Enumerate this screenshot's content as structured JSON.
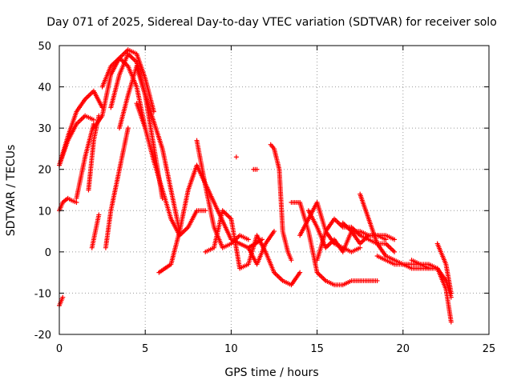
{
  "chart_data": {
    "type": "scatter",
    "title": "Day 071 of 2025, Sidereal Day-to-day VTEC variation (SDTVAR) for receiver solo",
    "xlabel": "GPS time / hours",
    "ylabel": "SDTVAR / TECUs",
    "xlim": [
      0,
      25
    ],
    "ylim": [
      -20,
      50
    ],
    "x_ticks": [
      0,
      5,
      10,
      15,
      20,
      25
    ],
    "y_ticks": [
      -20,
      -10,
      0,
      10,
      20,
      30,
      40,
      50
    ],
    "grid": true,
    "marker": "+",
    "series_color": "#ff0000",
    "series": [
      {
        "name": "arc-1",
        "x": [
          0.0,
          0.5,
          1.0,
          1.5,
          2.0
        ],
        "y": [
          21,
          27,
          31,
          33,
          32
        ]
      },
      {
        "name": "arc-2",
        "x": [
          0.0,
          0.5,
          1.0,
          1.5,
          2.0,
          2.5
        ],
        "y": [
          21,
          28,
          34,
          37,
          39,
          35
        ]
      },
      {
        "name": "arc-3",
        "x": [
          0.0,
          0.2,
          0.5,
          0.7,
          1.0
        ],
        "y": [
          10,
          12,
          13,
          12.5,
          12
        ]
      },
      {
        "name": "arc-4",
        "x": [
          0.0,
          0.2
        ],
        "y": [
          -13,
          -11
        ]
      },
      {
        "name": "arc-5",
        "x": [
          1.0,
          1.5,
          2.0
        ],
        "y": [
          13,
          23,
          31
        ]
      },
      {
        "name": "arc-6",
        "x": [
          1.7,
          2.0,
          2.3
        ],
        "y": [
          15,
          27,
          33
        ]
      },
      {
        "name": "arc-7",
        "x": [
          1.9,
          2.1,
          2.3
        ],
        "y": [
          1,
          5,
          9
        ]
      },
      {
        "name": "arc-8",
        "x": [
          2.0,
          2.5,
          3.0,
          3.5,
          4.0,
          4.5,
          5.0
        ],
        "y": [
          30,
          33,
          43,
          47,
          45,
          40,
          30
        ]
      },
      {
        "name": "arc-9",
        "x": [
          2.5,
          3.0,
          3.5,
          4.0,
          4.5,
          5.0,
          5.5
        ],
        "y": [
          40,
          45,
          47,
          49,
          48,
          42,
          34
        ]
      },
      {
        "name": "arc-10",
        "x": [
          2.7,
          3.0,
          3.5,
          4.0
        ],
        "y": [
          1,
          10,
          20,
          30
        ]
      },
      {
        "name": "arc-11",
        "x": [
          3.0,
          3.5,
          4.0,
          4.5,
          5.0,
          6.0,
          7.0
        ],
        "y": [
          35,
          43,
          48,
          46,
          38,
          25,
          5
        ]
      },
      {
        "name": "arc-12",
        "x": [
          3.5,
          4.0,
          4.5,
          5.0,
          6.0
        ],
        "y": [
          30,
          38,
          45,
          38,
          13
        ]
      },
      {
        "name": "arc-13",
        "x": [
          4.5,
          5.0,
          5.5,
          6.0,
          6.5,
          7.0,
          7.5,
          8.0,
          8.5
        ],
        "y": [
          36,
          30,
          22,
          15,
          8,
          4,
          6,
          10,
          10
        ]
      },
      {
        "name": "arc-14",
        "x": [
          5.8,
          6.5,
          7.0,
          7.5,
          8.0,
          9.0,
          10.0,
          11.0,
          11.8
        ],
        "y": [
          -5,
          -3,
          5,
          15,
          21,
          12,
          3,
          1,
          3
        ]
      },
      {
        "name": "arc-15",
        "x": [
          8.0,
          8.5,
          9.0,
          9.5,
          10.0,
          10.5,
          11.0
        ],
        "y": [
          27,
          16,
          6,
          1,
          2,
          4,
          3
        ]
      },
      {
        "name": "arc-16",
        "x": [
          8.5,
          9.0,
          9.5,
          10.0,
          10.5,
          11.0,
          11.5,
          12.0,
          12.5,
          13.0,
          13.5,
          14.0
        ],
        "y": [
          0,
          1,
          10,
          8,
          -4,
          -3,
          4,
          0,
          -5,
          -7,
          -8,
          -5
        ]
      },
      {
        "name": "arc-17",
        "x": [
          10.3
        ],
        "y": [
          23
        ]
      },
      {
        "name": "arc-18",
        "x": [
          11.3,
          11.5
        ],
        "y": [
          20,
          20
        ]
      },
      {
        "name": "arc-19",
        "x": [
          11.0,
          11.5,
          12.0,
          12.5
        ],
        "y": [
          1,
          -3,
          2,
          5
        ]
      },
      {
        "name": "arc-20",
        "x": [
          12.3,
          12.5,
          12.8,
          13.0,
          13.3,
          13.5
        ],
        "y": [
          26,
          25,
          20,
          5,
          0,
          -2
        ]
      },
      {
        "name": "arc-21",
        "x": [
          13.5,
          14.0,
          14.5,
          15.0,
          15.5,
          16.0,
          16.5,
          17.0,
          18.0,
          18.5
        ],
        "y": [
          12,
          12,
          5,
          -5,
          -7,
          -8,
          -8,
          -7,
          -7,
          -7
        ]
      },
      {
        "name": "arc-22",
        "x": [
          14.0,
          14.5,
          15.0,
          15.5,
          16.0,
          16.5,
          17.0,
          17.5
        ],
        "y": [
          4,
          8,
          12,
          5,
          2,
          1,
          0,
          1
        ]
      },
      {
        "name": "arc-23",
        "x": [
          14.5,
          15.0,
          15.5,
          16.0,
          16.5,
          17.0,
          17.5,
          18.0,
          18.5,
          19.0
        ],
        "y": [
          10,
          6,
          1,
          3,
          0,
          5,
          5,
          4,
          4,
          3
        ]
      },
      {
        "name": "arc-24",
        "x": [
          15.0,
          15.5,
          16.0,
          16.5,
          17.0,
          17.5,
          18.0,
          18.5,
          19.0,
          19.5
        ],
        "y": [
          -2,
          5,
          8,
          6,
          6,
          4,
          3,
          2,
          2,
          0
        ]
      },
      {
        "name": "arc-25",
        "x": [
          16.5,
          17.0,
          17.5,
          18.0,
          18.5,
          19.0,
          19.5
        ],
        "y": [
          7,
          5,
          2,
          4,
          4,
          4,
          3
        ]
      },
      {
        "name": "arc-26",
        "x": [
          17.5,
          18.0,
          18.5,
          19.0,
          19.5,
          20.0,
          20.5,
          21.0,
          21.5
        ],
        "y": [
          14,
          8,
          2,
          -1,
          -2,
          -3,
          -4,
          -4,
          -4
        ]
      },
      {
        "name": "arc-27",
        "x": [
          18.5,
          19.0,
          19.5,
          20.0,
          20.5,
          21.0,
          21.5,
          22.0,
          22.5,
          22.8
        ],
        "y": [
          -1,
          -2,
          -3,
          -3,
          -3,
          -3,
          -3,
          -4,
          -7,
          -11
        ]
      },
      {
        "name": "arc-28",
        "x": [
          20.5,
          21.0,
          21.5,
          22.0,
          22.5,
          22.8
        ],
        "y": [
          -2,
          -3,
          -4,
          -4,
          -9,
          -17
        ]
      },
      {
        "name": "arc-29",
        "x": [
          22.0,
          22.5,
          22.8
        ],
        "y": [
          2,
          -3,
          -10
        ]
      }
    ]
  }
}
